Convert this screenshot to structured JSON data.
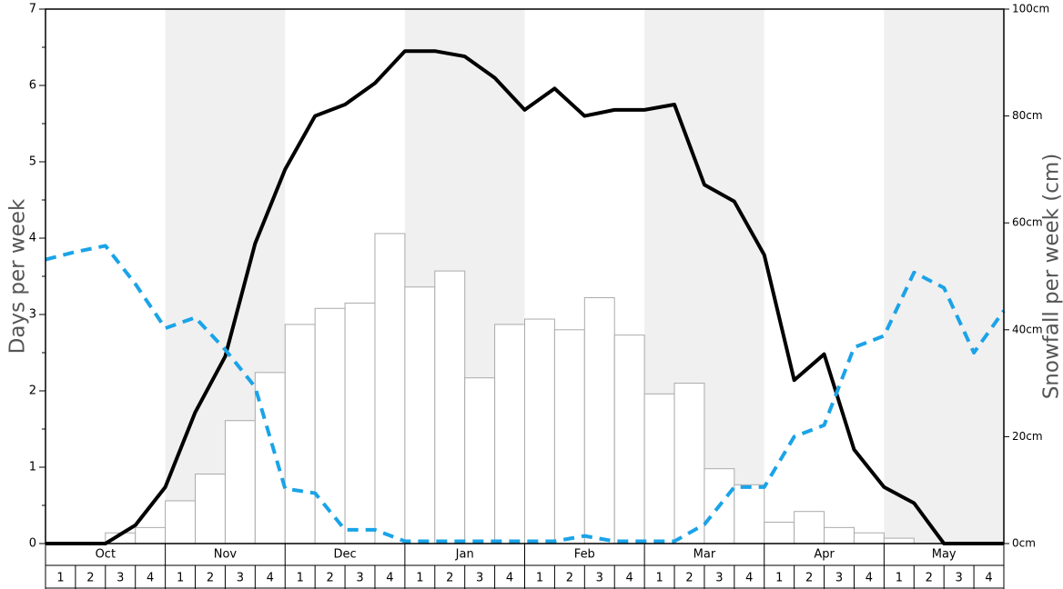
{
  "chart_data": {
    "type": "bar-line",
    "y_label": "Days per week",
    "y2_label": "Snowfall per week (cm)",
    "months": [
      "Oct",
      "Nov",
      "Dec",
      "Jan",
      "Feb",
      "Mar",
      "Apr",
      "May"
    ],
    "categories": [
      "1",
      "2",
      "3",
      "4",
      "1",
      "2",
      "3",
      "4",
      "1",
      "2",
      "3",
      "4",
      "1",
      "2",
      "3",
      "4",
      "1",
      "2",
      "3",
      "4",
      "1",
      "2",
      "3",
      "4",
      "1",
      "2",
      "3",
      "4",
      "1",
      "2",
      "3",
      "4"
    ],
    "x": [
      0,
      1,
      2,
      3,
      4,
      5,
      6,
      7,
      8,
      9,
      10,
      11,
      12,
      13,
      14,
      15,
      16,
      17,
      18,
      19,
      20,
      21,
      22,
      23,
      24,
      25,
      26,
      27,
      28,
      29,
      30,
      31,
      32
    ],
    "xlim": [
      0,
      32
    ],
    "ylim": [
      0,
      7
    ],
    "yticks": [
      0,
      1,
      2,
      3,
      4,
      5,
      6,
      7
    ],
    "y2lim": [
      0,
      100
    ],
    "y2ticks": [
      {
        "value": 0,
        "label": "0cm"
      },
      {
        "value": 20,
        "label": "20cm"
      },
      {
        "value": 40,
        "label": "40cm"
      },
      {
        "value": 60,
        "label": "60cm"
      },
      {
        "value": 80,
        "label": "80cm"
      },
      {
        "value": 100,
        "label": "100cm"
      }
    ],
    "shade_color": "#f0f0f0",
    "bars": {
      "axis": "y2",
      "color": "#ffffff",
      "edge": "#aaaaaa",
      "values": [
        0,
        0,
        2,
        3,
        8,
        13,
        23,
        32,
        41,
        44,
        45,
        58,
        48,
        51,
        31,
        41,
        42,
        40,
        46,
        39,
        28,
        30,
        14,
        11,
        4,
        6,
        3,
        2,
        1,
        0,
        0,
        0
      ]
    },
    "series": [
      {
        "color": "#000000",
        "dashed": false,
        "values": [
          0,
          0,
          0,
          0.24,
          0.74,
          1.72,
          2.45,
          3.93,
          4.9,
          5.6,
          5.75,
          6.03,
          6.45,
          6.45,
          6.38,
          6.1,
          5.68,
          5.96,
          5.6,
          5.68,
          5.68,
          5.75,
          4.7,
          4.48,
          3.78,
          2.14,
          2.48,
          1.23,
          0.74,
          0.53,
          0,
          0,
          0
        ]
      },
      {
        "color": "#1aa3e8",
        "dashed": true,
        "values": [
          3.72,
          3.82,
          3.9,
          3.4,
          2.82,
          2.96,
          2.54,
          2.05,
          0.72,
          0.66,
          0.18,
          0.18,
          0.03,
          0.03,
          0.03,
          0.03,
          0.03,
          0.03,
          0.1,
          0.03,
          0.03,
          0.03,
          0.25,
          0.74,
          0.74,
          1.4,
          1.55,
          2.57,
          2.72,
          3.55,
          3.35,
          2.5,
          3.05
        ]
      }
    ]
  }
}
